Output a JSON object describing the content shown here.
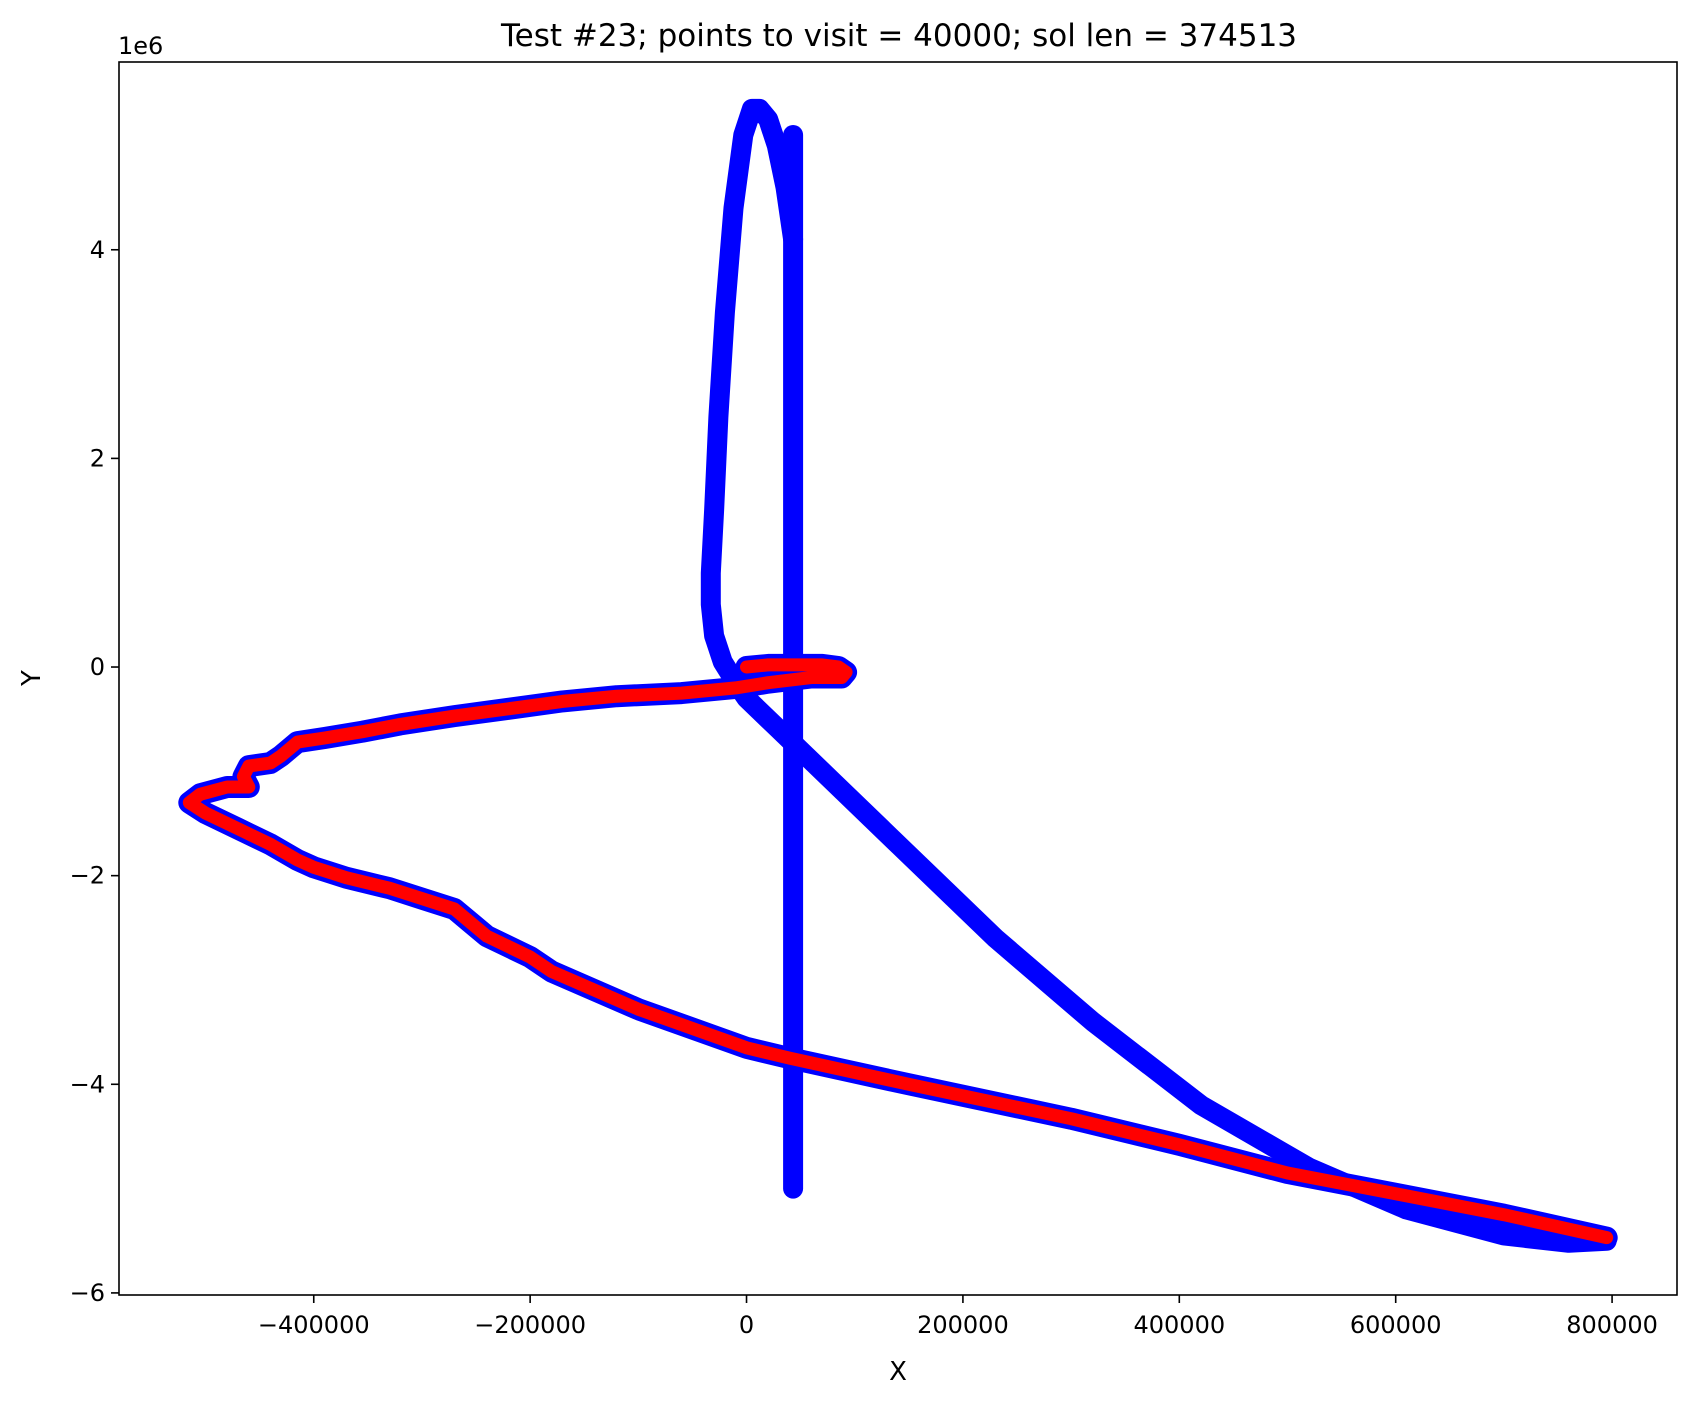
{
  "chart_data": {
    "type": "line",
    "title": "Test #23; points to visit = 40000; sol len = 374513",
    "xlabel": "X",
    "ylabel": "Y",
    "y_offset_label": "1e6",
    "xlim": [
      -580000,
      860000
    ],
    "ylim": [
      -6.02,
      5.8
    ],
    "x_ticks": [
      -400000,
      -200000,
      0,
      200000,
      400000,
      600000,
      800000
    ],
    "x_tick_labels": [
      "−400000",
      "−200000",
      "0",
      "200000",
      "400000",
      "600000",
      "800000"
    ],
    "y_ticks": [
      -6,
      -4,
      -2,
      0,
      2,
      4
    ],
    "y_tick_labels": [
      "−6",
      "−4",
      "−2",
      "0",
      "2",
      "4"
    ],
    "grid": false,
    "colors": {
      "points": "#0000ff",
      "solution": "#ff0000"
    },
    "series": [
      {
        "role": "points",
        "x": [
          43000,
          43000,
          43000,
          43000,
          43000,
          43000,
          43000,
          43000,
          43000,
          43000,
          43000,
          43000,
          43000,
          43000,
          43000,
          43000,
          43000,
          43000,
          43000,
          43000,
          43000,
          43000,
          43000
        ],
        "y": [
          5.1,
          4.6,
          4.1,
          3.6,
          3.1,
          2.6,
          2.1,
          1.6,
          1.1,
          0.6,
          0.1,
          -0.4,
          -0.9,
          -1.4,
          -1.9,
          -2.4,
          -2.9,
          -3.4,
          -3.9,
          -4.4,
          -4.7,
          -4.9,
          -5.0
        ]
      },
      {
        "role": "points",
        "x": [
          43000,
          36000,
          28000,
          20000,
          12000,
          5000,
          -3000,
          -12000,
          -20000,
          -26000,
          -30000,
          -33000,
          -33000,
          -30000,
          -22000,
          -10000,
          0,
          30000,
          80000,
          150000,
          230000,
          320000,
          420000,
          520000,
          610000,
          700000,
          760000,
          795000
        ],
        "y": [
          4.1,
          4.6,
          5.0,
          5.25,
          5.35,
          5.35,
          5.1,
          4.4,
          3.4,
          2.4,
          1.5,
          0.9,
          0.6,
          0.3,
          0.05,
          -0.15,
          -0.3,
          -0.6,
          -1.1,
          -1.8,
          -2.6,
          -3.4,
          -4.2,
          -4.8,
          -5.2,
          -5.45,
          -5.52,
          -5.5
        ]
      },
      {
        "role": "solution",
        "x": [
          0,
          20000,
          45000,
          70000,
          85000,
          92000,
          88000,
          60000,
          20000,
          -10000,
          -60000,
          -120000,
          -170000,
          -220000,
          -270000,
          -320000,
          -355000,
          -390000,
          -415000,
          -430000,
          -440000,
          -460000,
          -465000,
          -460000,
          -480000,
          -505000,
          -515000,
          -500000,
          -470000,
          -440000,
          -415000,
          -400000,
          -370000,
          -330000,
          -300000,
          -270000,
          -255000,
          -240000,
          -200000,
          -180000,
          -100000,
          0,
          40000,
          150000,
          300000,
          400000,
          500000,
          600000,
          700000,
          795000
        ],
        "y": [
          0.0,
          0.02,
          0.02,
          0.02,
          0.0,
          -0.05,
          -0.1,
          -0.1,
          -0.15,
          -0.2,
          -0.25,
          -0.28,
          -0.33,
          -0.4,
          -0.47,
          -0.55,
          -0.62,
          -0.68,
          -0.72,
          -0.85,
          -0.92,
          -0.95,
          -1.05,
          -1.15,
          -1.15,
          -1.22,
          -1.3,
          -1.4,
          -1.55,
          -1.7,
          -1.85,
          -1.92,
          -2.02,
          -2.12,
          -2.22,
          -2.32,
          -2.45,
          -2.58,
          -2.78,
          -2.92,
          -3.28,
          -3.65,
          -3.75,
          -4.0,
          -4.33,
          -4.58,
          -4.85,
          -5.05,
          -5.25,
          -5.47
        ]
      }
    ]
  }
}
